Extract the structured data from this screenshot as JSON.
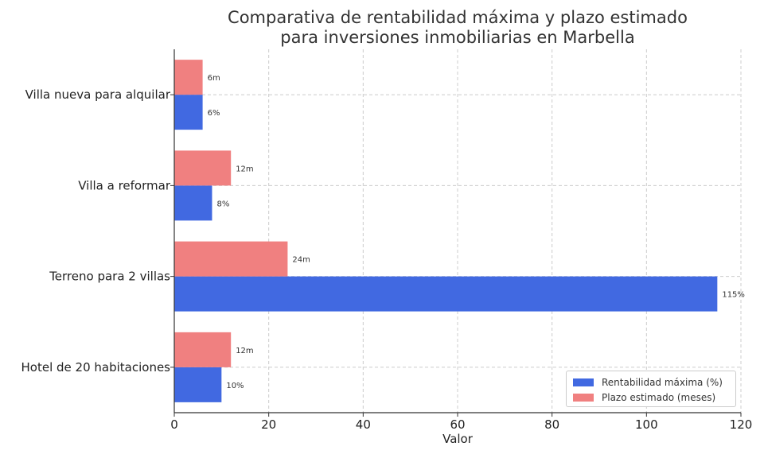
{
  "chart_data": {
    "type": "bar",
    "orientation": "horizontal",
    "title": "Comparativa de rentabilidad máxima y plazo estimado\npara inversiones inmobiliarias en Marbella",
    "xlabel": "Valor",
    "ylabel": "",
    "xlim": [
      0,
      120
    ],
    "xticks": [
      0,
      20,
      40,
      60,
      80,
      100,
      120
    ],
    "grid": true,
    "legend_position": "bottom-right",
    "categories": [
      "Villa nueva para alquilar",
      "Villa a reformar",
      "Terreno para 2 villas",
      "Hotel de 20 habitaciones"
    ],
    "series": [
      {
        "name": "Rentabilidad máxima (%)",
        "color": "#4169E1",
        "values": [
          6,
          8,
          115,
          10
        ],
        "labels": [
          "6%",
          "8%",
          "115%",
          "10%"
        ]
      },
      {
        "name": "Plazo estimado (meses)",
        "color": "#F08080",
        "values": [
          6,
          12,
          24,
          12
        ],
        "labels": [
          "6m",
          "12m",
          "24m",
          "12m"
        ]
      }
    ]
  }
}
